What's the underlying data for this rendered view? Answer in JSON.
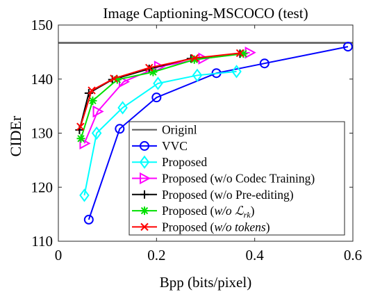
{
  "chart_data": {
    "type": "line",
    "title": "Image Captioning-MSCOCO (test)",
    "xlabel": "Bpp (bits/pixel)",
    "ylabel": "CIDEr",
    "xlim": [
      0,
      0.6
    ],
    "ylim": [
      110,
      150
    ],
    "xticks": [
      0,
      0.2,
      0.4,
      0.6
    ],
    "xtick_labels": [
      "0",
      "0.2",
      "0.4",
      "0.6"
    ],
    "yticks": [
      110,
      120,
      130,
      140,
      150
    ],
    "ytick_labels": [
      "110",
      "120",
      "130",
      "140",
      "150"
    ],
    "grid": false,
    "legend_position": "bottom-right",
    "series": [
      {
        "name": "Originl",
        "color": "#555555",
        "marker": "none",
        "x": [
          0,
          0.6
        ],
        "y": [
          146.7,
          146.7
        ]
      },
      {
        "name": "VVC",
        "color": "#0000ff",
        "marker": "circle",
        "x": [
          0.062,
          0.125,
          0.2,
          0.322,
          0.42,
          0.59
        ],
        "y": [
          114.0,
          130.8,
          136.6,
          141.1,
          142.9,
          146.0
        ]
      },
      {
        "name": "Proposed",
        "color": "#00ffff",
        "marker": "diamond",
        "x": [
          0.053,
          0.078,
          0.131,
          0.203,
          0.283,
          0.363
        ],
        "y": [
          118.5,
          130.0,
          134.7,
          139.2,
          140.7,
          141.4
        ]
      },
      {
        "name": "Proposed (w/o Codec Training)",
        "color": "#ff00ff",
        "marker": "triangle-right",
        "x": [
          0.053,
          0.08,
          0.133,
          0.205,
          0.295,
          0.39
        ],
        "y": [
          128.1,
          134.0,
          139.5,
          142.3,
          143.8,
          144.9
        ]
      },
      {
        "name": "Proposed (w/o Pre-editing)",
        "color": "#000000",
        "marker": "plus",
        "x": [
          0.043,
          0.062,
          0.11,
          0.185,
          0.27,
          0.37
        ],
        "y": [
          130.6,
          137.4,
          139.9,
          141.9,
          143.8,
          144.7
        ]
      },
      {
        "name": "Proposed (w/o ℒ_rk)",
        "color": "#00e000",
        "marker": "asterisk",
        "x": [
          0.046,
          0.07,
          0.12,
          0.193,
          0.277,
          0.377
        ],
        "y": [
          129.0,
          136.0,
          139.9,
          141.3,
          143.6,
          144.7
        ]
      },
      {
        "name": "Proposed (w/o tokens)",
        "color": "#ff0000",
        "marker": "x",
        "x": [
          0.045,
          0.068,
          0.113,
          0.185,
          0.278,
          0.37
        ],
        "y": [
          131.2,
          137.9,
          140.1,
          142.1,
          143.9,
          144.8
        ]
      }
    ]
  }
}
